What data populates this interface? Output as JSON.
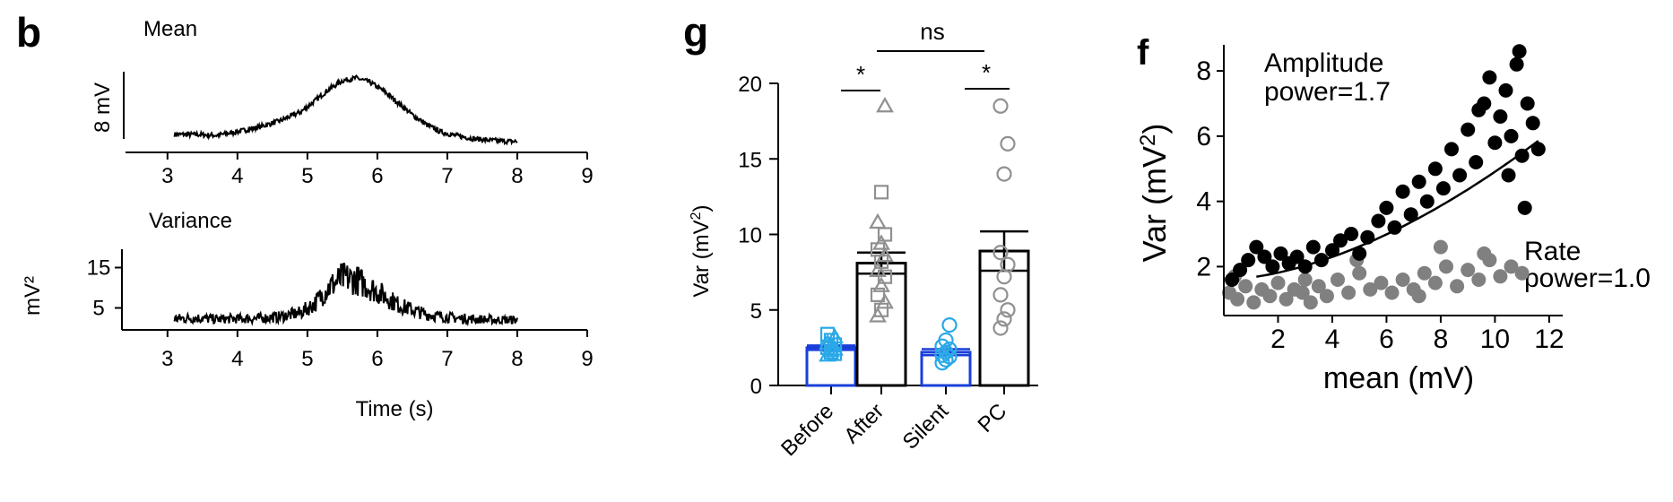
{
  "chart_data": [
    {
      "panel": "b",
      "type": "line",
      "title": "Mean",
      "scale_bar": "8 mV",
      "xlim": [
        2.4,
        9
      ],
      "xticks": [
        "3",
        "4",
        "5",
        "6",
        "7",
        "8",
        "9"
      ],
      "x": [
        3.1,
        3.4,
        3.7,
        4.0,
        4.3,
        4.6,
        4.9,
        5.1,
        5.3,
        5.5,
        5.7,
        5.9,
        6.1,
        6.3,
        6.5,
        6.7,
        6.9,
        7.1,
        7.4,
        7.7,
        8.0
      ],
      "values": [
        1.0,
        1.0,
        0.9,
        1.3,
        1.8,
        2.5,
        3.5,
        4.7,
        6.0,
        7.0,
        7.3,
        6.8,
        5.8,
        4.5,
        3.2,
        2.1,
        1.3,
        0.9,
        0.5,
        0.3,
        0.2
      ],
      "ylim": [
        0,
        10
      ]
    },
    {
      "panel": "b",
      "type": "line",
      "title": "Variance",
      "ylabel": "mV²",
      "xlabel": "Time (s)",
      "xlim": [
        2.4,
        9
      ],
      "ylim": [
        0,
        20
      ],
      "yticks": [
        "15",
        "5"
      ],
      "xticks": [
        "3",
        "4",
        "5",
        "6",
        "7",
        "8",
        "9"
      ],
      "x": [
        3.1,
        3.4,
        3.7,
        4.0,
        4.3,
        4.6,
        4.9,
        5.1,
        5.3,
        5.5,
        5.7,
        5.9,
        6.1,
        6.3,
        6.5,
        6.7,
        6.9,
        7.1,
        7.4,
        7.7,
        8.0
      ],
      "values": [
        2.3,
        2.5,
        2.2,
        2.3,
        2.4,
        2.8,
        3.8,
        6.0,
        10.0,
        12.5,
        12.0,
        10.0,
        8.0,
        5.8,
        4.5,
        3.4,
        2.9,
        2.5,
        2.2,
        2.0,
        2.0
      ]
    },
    {
      "panel": "g",
      "type": "bar",
      "ylabel": "Var (mV",
      "ylabel_sup": "2",
      "ylabel_end": ")",
      "ylim": [
        0,
        20
      ],
      "yticks": [
        "0",
        "5",
        "10",
        "15",
        "20"
      ],
      "categories": [
        "Before",
        "After",
        "Silent",
        "PC"
      ],
      "values": [
        2.5,
        8.1,
        2.2,
        8.9
      ],
      "error": [
        0.15,
        0.7,
        0.2,
        1.3
      ],
      "colors": [
        "#1a3fd9",
        "#000000",
        "#1a3fd9",
        "#000000"
      ],
      "significance": [
        "*",
        "ns",
        "*"
      ],
      "points": [
        [
          2.0,
          2.2,
          2.4,
          2.5,
          2.6,
          2.7,
          2.8,
          3.0,
          3.2,
          3.4,
          2.3,
          2.1
        ],
        [
          4.6,
          5.0,
          5.5,
          6.0,
          6.6,
          7.2,
          7.6,
          8.2,
          8.6,
          9.0,
          9.4,
          10.0,
          10.8,
          12.8,
          18.5
        ],
        [
          1.5,
          1.7,
          1.9,
          2.0,
          2.2,
          2.4,
          2.6,
          3.0,
          4.0
        ],
        [
          3.8,
          4.4,
          5.0,
          6.0,
          7.2,
          8.0,
          8.8,
          14.0,
          16.0,
          18.5
        ]
      ]
    },
    {
      "panel": "f",
      "type": "scatter",
      "xlabel": "mean (mV)",
      "ylabel": "Var (mV",
      "ylabel_sup": "2",
      "ylabel_end": ")",
      "xlim": [
        0,
        12.5
      ],
      "ylim": [
        0.5,
        8.8
      ],
      "xticks": [
        "2",
        "4",
        "6",
        "8",
        "10",
        "12"
      ],
      "yticks": [
        "2",
        "4",
        "6",
        "8"
      ],
      "series": [
        {
          "label_line1": "Amplitude",
          "label_line2": "power=1.7",
          "color": "#000000",
          "points": [
            [
              0.3,
              1.6
            ],
            [
              0.6,
              1.9
            ],
            [
              0.9,
              2.2
            ],
            [
              1.2,
              2.6
            ],
            [
              1.5,
              2.3
            ],
            [
              1.8,
              2.0
            ],
            [
              2.1,
              2.4
            ],
            [
              2.4,
              2.1
            ],
            [
              2.7,
              2.3
            ],
            [
              3.0,
              2.0
            ],
            [
              3.3,
              2.6
            ],
            [
              3.6,
              2.2
            ],
            [
              4.0,
              2.5
            ],
            [
              4.3,
              2.8
            ],
            [
              4.7,
              3.0
            ],
            [
              5.0,
              2.4
            ],
            [
              5.3,
              2.9
            ],
            [
              5.7,
              3.4
            ],
            [
              6.0,
              3.8
            ],
            [
              6.3,
              3.2
            ],
            [
              6.6,
              4.3
            ],
            [
              6.9,
              3.6
            ],
            [
              7.2,
              4.6
            ],
            [
              7.5,
              4.0
            ],
            [
              7.8,
              5.0
            ],
            [
              8.1,
              4.4
            ],
            [
              8.4,
              5.6
            ],
            [
              8.7,
              4.8
            ],
            [
              9.0,
              6.2
            ],
            [
              9.3,
              5.2
            ],
            [
              9.6,
              7.0
            ],
            [
              9.8,
              7.8
            ],
            [
              10.0,
              5.8
            ],
            [
              10.2,
              6.6
            ],
            [
              10.4,
              7.4
            ],
            [
              10.6,
              6.0
            ],
            [
              10.8,
              8.2
            ],
            [
              11.0,
              5.4
            ],
            [
              11.2,
              7.0
            ],
            [
              11.4,
              6.4
            ],
            [
              11.6,
              5.6
            ],
            [
              9.4,
              6.8
            ],
            [
              10.9,
              8.6
            ],
            [
              11.1,
              3.8
            ],
            [
              10.5,
              4.8
            ]
          ]
        },
        {
          "label_line1": "Rate",
          "label_line2": "power=1.0",
          "color": "#808080",
          "points": [
            [
              0.2,
              1.2
            ],
            [
              0.5,
              1.0
            ],
            [
              0.8,
              1.4
            ],
            [
              1.1,
              0.9
            ],
            [
              1.4,
              1.3
            ],
            [
              1.7,
              1.1
            ],
            [
              2.0,
              1.5
            ],
            [
              2.3,
              1.0
            ],
            [
              2.6,
              1.3
            ],
            [
              2.9,
              1.2
            ],
            [
              3.2,
              0.9
            ],
            [
              3.5,
              1.4
            ],
            [
              3.8,
              1.1
            ],
            [
              4.2,
              1.6
            ],
            [
              4.6,
              1.2
            ],
            [
              5.0,
              1.8
            ],
            [
              5.4,
              1.3
            ],
            [
              5.8,
              1.5
            ],
            [
              6.2,
              1.2
            ],
            [
              6.6,
              1.6
            ],
            [
              7.0,
              1.3
            ],
            [
              7.4,
              1.8
            ],
            [
              7.8,
              1.5
            ],
            [
              8.2,
              2.0
            ],
            [
              8.6,
              1.4
            ],
            [
              9.0,
              1.9
            ],
            [
              9.4,
              1.6
            ],
            [
              9.8,
              2.2
            ],
            [
              10.2,
              1.7
            ],
            [
              10.6,
              2.0
            ],
            [
              11.0,
              1.8
            ],
            [
              8.0,
              2.6
            ],
            [
              4.9,
              2.2
            ],
            [
              0.4,
              1.7
            ],
            [
              3.0,
              1.6
            ],
            [
              7.2,
              1.1
            ],
            [
              9.6,
              2.4
            ]
          ]
        }
      ]
    }
  ],
  "panels": {
    "b": "b",
    "g": "g",
    "f": "f"
  }
}
